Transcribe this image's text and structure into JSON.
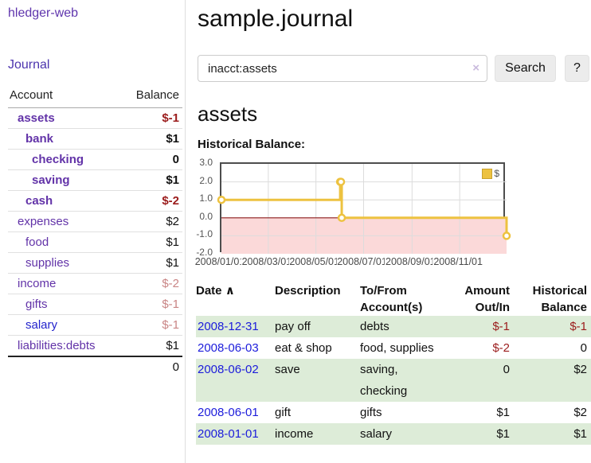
{
  "sidebar": {
    "app_title": "hledger-web",
    "journal_link": "Journal",
    "accounts_header": {
      "account": "Account",
      "balance": "Balance"
    },
    "accounts": [
      {
        "name": "assets",
        "balance": "$-1",
        "level": 1
      },
      {
        "name": "bank",
        "balance": "$1",
        "level": 2
      },
      {
        "name": "checking",
        "balance": "0",
        "level": 3
      },
      {
        "name": "saving",
        "balance": "$1",
        "level": 3
      },
      {
        "name": "cash",
        "balance": "$-2",
        "level": 2
      },
      {
        "name": "expenses",
        "balance": "$2",
        "level": 1
      },
      {
        "name": "food",
        "balance": "$1",
        "level": 2
      },
      {
        "name": "supplies",
        "balance": "$1",
        "level": 2
      },
      {
        "name": "income",
        "balance": "$-2",
        "level": 1
      },
      {
        "name": "gifts",
        "balance": "$-1",
        "level": 2
      },
      {
        "name": "salary",
        "balance": "$-1",
        "level": 2
      },
      {
        "name": "liabilities:debts",
        "balance": "$1",
        "level": 1
      }
    ],
    "total": "0"
  },
  "main": {
    "title": "sample.journal",
    "search": {
      "value": "inacct:assets",
      "clear_icon": "×",
      "button": "Search",
      "help_button": "?"
    },
    "account_heading": "assets",
    "chart_caption": "Historical Balance:"
  },
  "chart_data": {
    "type": "line",
    "title": "Historical Balance",
    "step": true,
    "series": [
      {
        "name": "$",
        "points": [
          [
            "2008-01-01",
            1
          ],
          [
            "2008-06-01",
            2
          ],
          [
            "2008-06-02",
            2
          ],
          [
            "2008-06-03",
            0
          ],
          [
            "2008-12-31",
            -1
          ]
        ]
      }
    ],
    "x_range": [
      "2008-01-01",
      "2008-12-31"
    ],
    "ylim": [
      -2,
      3
    ],
    "y_ticks": [
      3.0,
      2.0,
      1.0,
      0.0,
      -1.0,
      -2.0
    ],
    "x_ticks": [
      "2008/01/01",
      "2008/03/01",
      "2008/05/01",
      "2008/07/01",
      "2008/09/01",
      "2008/11/01"
    ],
    "legend": {
      "label": "$",
      "position": "top-right"
    },
    "colors": {
      "line": "#edc240",
      "negative_region": "#fbd9d9",
      "zero_line": "#8b1a1a",
      "grid": "#dcdcdc",
      "border": "#4d4d4d"
    }
  },
  "register": {
    "headers": {
      "date": "Date",
      "sort_icon": "∧",
      "description": "Description",
      "account_line1": "To/From",
      "account_line2": "Account(s)",
      "amount_line1": "Amount",
      "amount_line2": "Out/In",
      "balance_line1": "Historical",
      "balance_line2": "Balance"
    },
    "rows": [
      {
        "date": "2008-12-31",
        "description": "pay off",
        "accounts": "debts",
        "amount": "$-1",
        "balance": "$-1"
      },
      {
        "date": "2008-06-03",
        "description": "eat & shop",
        "accounts": "food, supplies",
        "amount": "$-2",
        "balance": "0"
      },
      {
        "date": "2008-06-02",
        "description": "save",
        "accounts": "saving, checking",
        "amount": "0",
        "balance": "$2"
      },
      {
        "date": "2008-06-01",
        "description": "gift",
        "accounts": "gifts",
        "amount": "$1",
        "balance": "$2"
      },
      {
        "date": "2008-01-01",
        "description": "income",
        "accounts": "salary",
        "amount": "$1",
        "balance": "$1"
      }
    ]
  }
}
